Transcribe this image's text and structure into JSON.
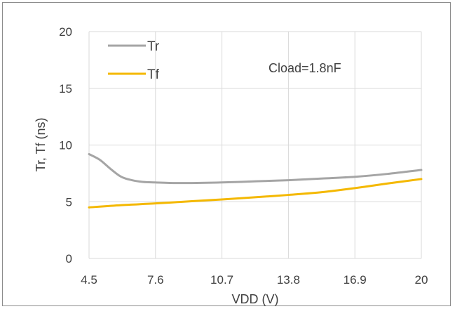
{
  "chart_data": {
    "type": "line",
    "xlabel": "VDD (V)",
    "ylabel": "Tr, Tf (ns)",
    "xlim": [
      4.5,
      20
    ],
    "ylim": [
      0,
      20
    ],
    "x_ticks": [
      "4.5",
      "7.6",
      "10.7",
      "13.8",
      "16.9",
      "20"
    ],
    "y_ticks": [
      "0",
      "5",
      "10",
      "15",
      "20"
    ],
    "grid": true,
    "legend_position": "top-left",
    "annotation": "Cload=1.8nF",
    "series": [
      {
        "name": "Tr",
        "color": "#a5a5a5",
        "x": [
          4.5,
          5.0,
          5.5,
          6.0,
          6.5,
          7.0,
          7.6,
          8.5,
          9.3,
          10.7,
          12.3,
          13.8,
          15.4,
          16.9,
          18.4,
          20
        ],
        "y": [
          9.2,
          8.7,
          7.9,
          7.2,
          6.9,
          6.75,
          6.7,
          6.65,
          6.65,
          6.7,
          6.8,
          6.9,
          7.05,
          7.2,
          7.45,
          7.8
        ]
      },
      {
        "name": "Tf",
        "color": "#f4b800",
        "x": [
          4.5,
          6.0,
          7.6,
          9.3,
          10.7,
          12.3,
          13.8,
          15.4,
          16.9,
          18.4,
          20
        ],
        "y": [
          4.5,
          4.7,
          4.85,
          5.05,
          5.2,
          5.4,
          5.6,
          5.85,
          6.2,
          6.6,
          7.0
        ]
      }
    ]
  }
}
